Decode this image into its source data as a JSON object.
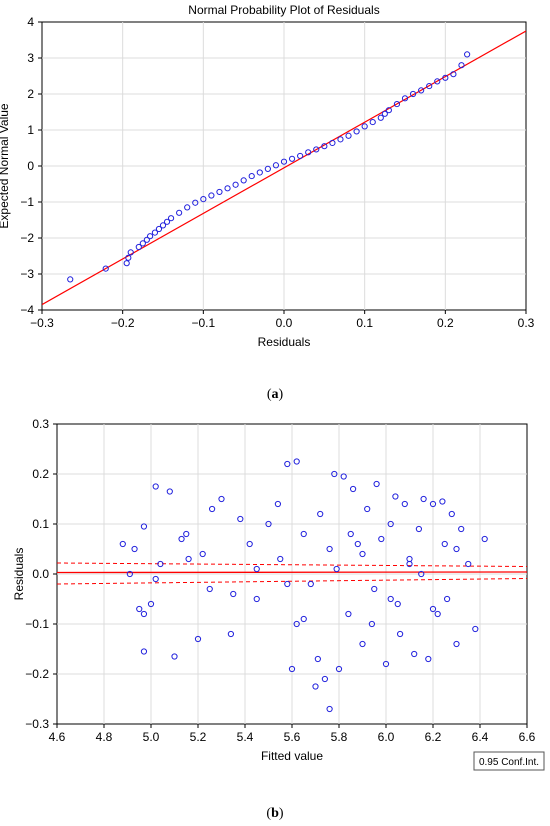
{
  "panels": {
    "a_label": "a",
    "b_label": "b"
  },
  "chart_data": [
    {
      "type": "scatter",
      "title": "Normal Probability Plot of Residuals",
      "xlabel": "Residuals",
      "ylabel": "Expected Normal Value",
      "xlim": [
        -0.3,
        0.3
      ],
      "ylim": [
        -4,
        4
      ],
      "x_ticks": [
        "-0.3",
        "-0.2",
        "-0.1",
        "0.0",
        "0.1",
        "0.2",
        "0.3"
      ],
      "y_ticks": [
        "-4",
        "-3",
        "-2",
        "-1",
        "0",
        "1",
        "2",
        "3",
        "4"
      ],
      "grid": true,
      "marker": "open-circle",
      "marker_color": "#2222dd",
      "line_color": "#ff0000",
      "reference_line": {
        "x": [
          -0.3,
          0.3
        ],
        "y": [
          -3.85,
          3.75
        ]
      },
      "x": [
        -0.265,
        -0.221,
        -0.195,
        -0.193,
        -0.19,
        -0.18,
        -0.175,
        -0.17,
        -0.166,
        -0.16,
        -0.155,
        -0.15,
        -0.145,
        -0.14,
        -0.13,
        -0.12,
        -0.11,
        -0.1,
        -0.09,
        -0.08,
        -0.07,
        -0.06,
        -0.05,
        -0.04,
        -0.03,
        -0.02,
        -0.01,
        0.0,
        0.01,
        0.02,
        0.03,
        0.04,
        0.05,
        0.06,
        0.07,
        0.08,
        0.09,
        0.1,
        0.11,
        0.12,
        0.125,
        0.13,
        0.14,
        0.15,
        0.16,
        0.17,
        0.18,
        0.19,
        0.2,
        0.21,
        0.22,
        0.227
      ],
      "y": [
        -3.15,
        -2.85,
        -2.7,
        -2.55,
        -2.4,
        -2.25,
        -2.15,
        -2.05,
        -1.95,
        -1.85,
        -1.75,
        -1.65,
        -1.55,
        -1.45,
        -1.3,
        -1.15,
        -1.02,
        -0.92,
        -0.82,
        -0.72,
        -0.62,
        -0.52,
        -0.4,
        -0.28,
        -0.18,
        -0.08,
        0.02,
        0.12,
        0.2,
        0.28,
        0.38,
        0.46,
        0.55,
        0.64,
        0.74,
        0.84,
        0.96,
        1.1,
        1.22,
        1.34,
        1.45,
        1.55,
        1.72,
        1.88,
        2.0,
        2.1,
        2.22,
        2.35,
        2.45,
        2.55,
        2.8,
        3.1
      ]
    },
    {
      "type": "scatter",
      "xlabel": "Fitted value",
      "ylabel": "Residuals",
      "xlim": [
        4.6,
        6.6
      ],
      "ylim": [
        -0.3,
        0.3
      ],
      "x_ticks": [
        "4.6",
        "4.8",
        "5.0",
        "5.2",
        "5.4",
        "5.6",
        "5.8",
        "6.0",
        "6.2",
        "6.4",
        "6.6"
      ],
      "y_ticks": [
        "-0.3",
        "-0.2",
        "-0.1",
        "0.0",
        "0.1",
        "0.2",
        "0.3"
      ],
      "grid": true,
      "marker": "open-circle",
      "marker_color": "#2222dd",
      "fit_line": {
        "x": [
          4.6,
          6.6
        ],
        "y": [
          0.003,
          0.004
        ],
        "color": "#ff0000"
      },
      "conf_band": {
        "upper": [
          0.022,
          0.015
        ],
        "lower": [
          -0.02,
          -0.009
        ],
        "color": "#ff0000"
      },
      "legend": "0.95 Conf.Int.",
      "legend_position": "bottom-right",
      "x": [
        4.88,
        4.91,
        4.93,
        4.95,
        4.97,
        4.97,
        5.0,
        5.02,
        5.04,
        5.08,
        5.1,
        5.13,
        5.16,
        5.2,
        5.22,
        5.26,
        5.3,
        5.34,
        5.38,
        5.42,
        5.45,
        5.5,
        5.54,
        5.58,
        5.6,
        5.62,
        5.65,
        5.68,
        5.7,
        5.72,
        5.74,
        5.76,
        5.78,
        5.8,
        5.82,
        5.84,
        5.86,
        5.88,
        5.9,
        5.92,
        5.94,
        5.96,
        5.98,
        6.0,
        6.02,
        6.04,
        6.06,
        6.08,
        6.1,
        6.12,
        6.14,
        6.16,
        6.18,
        6.2,
        6.22,
        6.24,
        6.26,
        6.28,
        6.3,
        6.32,
        6.35,
        6.38,
        6.42,
        5.58,
        5.62,
        5.76,
        5.79,
        5.71,
        5.02,
        4.97,
        5.9,
        6.05,
        6.15,
        6.25,
        5.55,
        5.35,
        5.95,
        6.1,
        6.2,
        6.3,
        6.02,
        5.85,
        5.65,
        5.45,
        5.25,
        5.15
      ],
      "y": [
        0.06,
        0.0,
        0.05,
        -0.07,
        -0.155,
        0.095,
        -0.06,
        0.175,
        0.02,
        0.165,
        -0.165,
        0.07,
        0.03,
        -0.13,
        0.04,
        0.13,
        0.15,
        -0.12,
        0.11,
        0.06,
        -0.05,
        0.1,
        0.14,
        0.22,
        -0.19,
        0.225,
        0.08,
        -0.02,
        -0.225,
        0.12,
        -0.21,
        0.05,
        0.2,
        -0.19,
        0.195,
        -0.08,
        0.17,
        0.06,
        -0.14,
        0.13,
        -0.1,
        0.18,
        0.07,
        -0.18,
        0.1,
        0.155,
        -0.12,
        0.14,
        0.03,
        -0.16,
        0.09,
        0.15,
        -0.17,
        0.14,
        -0.08,
        0.145,
        -0.05,
        0.12,
        -0.14,
        0.09,
        0.02,
        -0.11,
        0.07,
        -0.02,
        -0.1,
        -0.27,
        0.01,
        -0.17,
        -0.01,
        -0.08,
        0.04,
        -0.06,
        0.0,
        0.06,
        0.03,
        -0.04,
        -0.03,
        0.02,
        -0.07,
        0.05,
        -0.05,
        0.08,
        -0.09,
        0.01,
        -0.03,
        0.08
      ]
    }
  ]
}
